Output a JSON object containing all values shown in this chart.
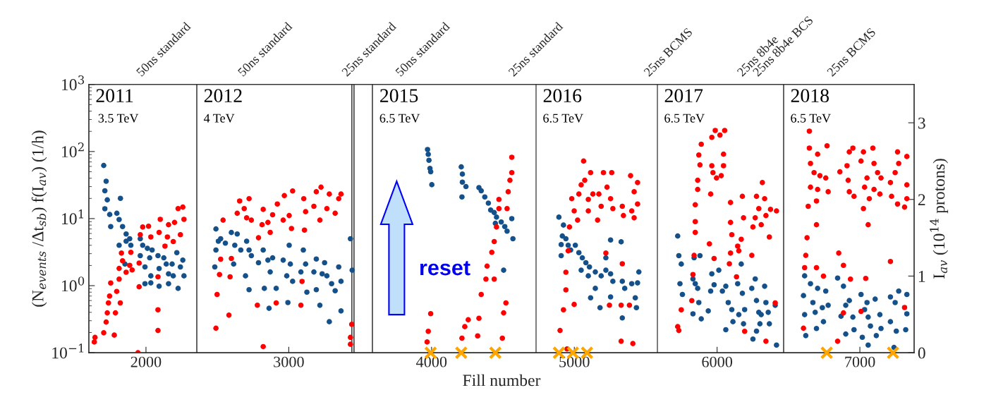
{
  "chart_data": {
    "type": "scatter",
    "xlabel": "Fill number",
    "ylabel": "(N$_{events}$ /Δt$_{sb}$) f(I$_{av}$) (1/h)",
    "y2label": "I$_{av}$ (10$^{14}$ protons)",
    "log": "y",
    "marker": "circle",
    "xlim": [
      1600,
      7380
    ],
    "xticks": [
      2000,
      3000,
      4000,
      5000,
      6000,
      7000
    ],
    "ylim": [
      0.1,
      1000
    ],
    "yticks": [
      {
        "value": 0.1,
        "label": "10$^{−1}$"
      },
      {
        "value": 1,
        "label": "10$^{0}$"
      },
      {
        "value": 10,
        "label": "10$^{1}$"
      },
      {
        "value": 100,
        "label": "10$^{2}$"
      },
      {
        "value": 1000,
        "label": "10$^{3}$"
      }
    ],
    "y2lim": [
      0,
      3.5
    ],
    "y2ticks": [
      0,
      1,
      2,
      3
    ],
    "ref_lines": [
      {
        "axis": "x",
        "value": 2356,
        "color": "#333333"
      },
      {
        "axis": "x",
        "value": 3442,
        "color": "#333333"
      },
      {
        "axis": "x",
        "value": 3457,
        "color": "#333333"
      },
      {
        "axis": "x",
        "value": 3586,
        "color": "#333333"
      },
      {
        "axis": "x",
        "value": 4732,
        "color": "#555555"
      },
      {
        "axis": "x",
        "value": 5582,
        "color": "#555555"
      },
      {
        "axis": "x",
        "value": 6466,
        "color": "#333333"
      }
    ],
    "annotations": [
      "50ns standard",
      "50ns standard",
      "25ns standard",
      "50ns standard",
      "25ns standard",
      "25ns BCMS",
      "25ns 8b4e",
      "25ns 8b4e BCS",
      "25ns BCMS",
      "2011",
      "3.5 TeV",
      "2012",
      "4 TeV",
      "2015",
      "6.5 TeV",
      "2016",
      "6.5 TeV",
      "2017",
      "6.5 TeV",
      "2018",
      "6.5 TeV",
      "reset"
    ],
    "series": [
      {
        "color": "#14508a",
        "x": [
          1704,
          1721,
          1712,
          1729,
          1712,
          1746,
          1796,
          1821,
          1753,
          1812,
          1836,
          1861,
          1886,
          1861,
          1812,
          1894,
          1853,
          1960,
          1977,
          1960,
          2010,
          1993,
          2026,
          2043,
          2034,
          1993,
          2034,
          2084,
          2092,
          2092,
          2125,
          2142,
          2158,
          2158,
          2183,
          2216,
          2225,
          2241,
          2258,
          2266,
          2191,
          2490,
          2507,
          2523,
          2490,
          2482,
          2556,
          2598,
          2639,
          2622,
          2664,
          2705,
          2722,
          2738,
          2697,
          2722,
          2614,
          2788,
          2821,
          2854,
          2887,
          2870,
          2912,
          2829,
          2862,
          2961,
          3003,
          3011,
          2986,
          2994,
          3027,
          3085,
          3102,
          3118,
          3127,
          3176,
          3193,
          3193,
          3234,
          3267,
          3251,
          3218,
          3284,
          3300,
          3325,
          3350,
          3366,
          3366,
          3432,
          3444,
          3972,
          3977,
          3982,
          3989,
          3994,
          4002,
          4208,
          4216,
          4216,
          4241,
          4213,
          4332,
          4348,
          4373,
          4398,
          4414,
          4439,
          4455,
          4447,
          4488,
          4513,
          4529,
          4570,
          4562,
          4505,
          4892,
          4924,
          4916,
          4908,
          4941,
          4957,
          4908,
          4974,
          5007,
          5032,
          5056,
          5081,
          5048,
          5106,
          5098,
          5147,
          5188,
          5221,
          5254,
          5254,
          5221,
          5270,
          5328,
          5336,
          5353,
          5147,
          5114,
          5180,
          5254,
          5336,
          5402,
          5427,
          5452,
          5435,
          5443,
          5724,
          5732,
          5749,
          5740,
          5757,
          5831,
          5847,
          5864,
          5839,
          5880,
          5872,
          5831,
          5889,
          5938,
          5955,
          5963,
          5979,
          6012,
          6037,
          6061,
          6078,
          6103,
          6111,
          6061,
          6144,
          6169,
          6177,
          6152,
          6185,
          6193,
          6243,
          6267,
          6276,
          6292,
          6300,
          6309,
          6333,
          6342,
          6358,
          6366,
          6416,
          6407,
          6251,
          6276,
          6613,
          6605,
          6613,
          6621,
          6654,
          6671,
          6687,
          6696,
          6704,
          6737,
          6761,
          6745,
          6778,
          6844,
          6885,
          6868,
          6901,
          6926,
          6951,
          6901,
          6959,
          7008,
          7033,
          7050,
          7058,
          7074,
          7107,
          7115,
          7140,
          7148,
          7058,
          7017,
          7214,
          7247,
          7272,
          7214,
          7255,
          7321,
          7329,
          7329,
          7239
        ],
        "values": [
          62,
          36,
          26,
          19,
          14,
          11.5,
          12,
          20,
          7.6,
          9.7,
          7.6,
          5.9,
          5.0,
          4.6,
          4.0,
          4.0,
          2.1,
          5.0,
          4.0,
          2.8,
          3.6,
          1.9,
          2.6,
          3.4,
          1.4,
          1.07,
          1.1,
          2.8,
          1.8,
          0.98,
          2.6,
          2.1,
          1.5,
          1.07,
          2.1,
          3.1,
          0.91,
          1.9,
          2.4,
          1.4,
          1.4,
          7.0,
          4.6,
          5.0,
          3.4,
          1.9,
          4.3,
          6.2,
          5.9,
          4.0,
          3.4,
          4.6,
          3.4,
          2.8,
          1.4,
          0.87,
          2.1,
          2.2,
          3.4,
          2.4,
          2.6,
          1.6,
          0.91,
          0.91,
          0.46,
          2.4,
          4.0,
          2.1,
          1.4,
          0.56,
          1.16,
          1.6,
          3.4,
          2.1,
          0.8,
          1.6,
          2.5,
          0.87,
          1.5,
          1.4,
          2.2,
          0.51,
          0.29,
          1.07,
          0.84,
          1.9,
          1.16,
          0.42,
          5.0,
          1.7,
          107,
          91,
          74,
          56,
          50,
          32,
          59,
          46,
          35,
          30,
          21,
          29,
          26,
          21,
          17,
          13.4,
          12.3,
          10.5,
          8.5,
          8.9,
          7.6,
          6.5,
          5.0,
          10,
          1.7,
          10.5,
          8.0,
          5.5,
          4.1,
          5.0,
          4.0,
          2.8,
          3.4,
          4.0,
          3.1,
          2.6,
          2.2,
          1.7,
          1.9,
          1.4,
          1.6,
          1.4,
          1.7,
          1.5,
          4.8,
          2.6,
          1.16,
          4.5,
          1.16,
          0.91,
          0.91,
          0.66,
          0.47,
          0.68,
          0.33,
          1.07,
          0.66,
          1.6,
          0.47,
          1.1,
          5.5,
          2.8,
          2.1,
          1.07,
          0.74,
          1.26,
          1.07,
          0.91,
          2.6,
          2.8,
          0.56,
          0.38,
          0.32,
          0.42,
          0.83,
          1.5,
          1.03,
          1.7,
          0.83,
          0.98,
          0.56,
          0.44,
          0.29,
          0.22,
          1.07,
          2.1,
          0.77,
          0.37,
          0.27,
          0.44,
          0.91,
          1.26,
          0.6,
          0.4,
          0.27,
          0.37,
          0.98,
          0.56,
          0.4,
          0.27,
          0.13,
          0.51,
          0.16,
          0.21,
          1.4,
          0.71,
          0.37,
          0.18,
          1.07,
          0.56,
          0.4,
          0.23,
          0.91,
          0.47,
          0.83,
          0.29,
          0.51,
          1.3,
          0.98,
          0.35,
          0.51,
          0.6,
          0.34,
          0.19,
          0.22,
          0.74,
          0.44,
          0.56,
          0.34,
          0.25,
          0.63,
          0.18,
          0.37,
          0.23,
          0.13,
          0.17,
          0.68,
          0.56,
          0.83,
          0.29,
          0.21,
          0.22,
          0.38,
          0.74,
          0.12
        ]
      },
      {
        "axis": "y2",
        "color": "#ff0000",
        "x": [
          1638,
          1643,
          1704,
          1721,
          1729,
          1737,
          1745,
          1753,
          1778,
          1786,
          1795,
          1812,
          1820,
          1812,
          1836,
          1828,
          1861,
          1886,
          1894,
          1903,
          1952,
          1952,
          1944,
          1960,
          1977,
          2018,
          2034,
          2084,
          2084,
          2084,
          2100,
          2092,
          2133,
          2150,
          2158,
          2191,
          2200,
          2225,
          2258,
          2241,
          2266,
          2490,
          2498,
          2515,
          2523,
          2540,
          2589,
          2598,
          2581,
          2639,
          2656,
          2688,
          2722,
          2738,
          2705,
          2788,
          2813,
          2821,
          2854,
          2870,
          2887,
          2920,
          2961,
          2969,
          3003,
          3027,
          3019,
          3105,
          3118,
          3110,
          3093,
          3085,
          3176,
          3193,
          3226,
          3218,
          3267,
          3284,
          3325,
          3366,
          3350,
          2821,
          2780,
          2912,
          3441,
          3432,
          3432,
          3969,
          3977,
          3994,
          4213,
          4233,
          4257,
          4323,
          4332,
          4348,
          4381,
          4389,
          4439,
          4422,
          4439,
          4455,
          4472,
          4496,
          4505,
          4521,
          4529,
          4537,
          4549,
          4562,
          4562,
          4472,
          4900,
          4924,
          4941,
          4941,
          4949,
          4957,
          4966,
          4999,
          4982,
          4999,
          5023,
          5032,
          5048,
          5065,
          5073,
          5098,
          5114,
          5098,
          5130,
          5163,
          5172,
          5188,
          5204,
          5221,
          5229,
          5246,
          5254,
          5262,
          5270,
          5328,
          5336,
          5336,
          5344,
          5328,
          5386,
          5394,
          5402,
          5419,
          5419,
          5443,
          5443,
          5410,
          5724,
          5732,
          5749,
          5823,
          5831,
          5839,
          5847,
          5847,
          5847,
          5864,
          5864,
          5880,
          5872,
          5889,
          5955,
          5963,
          5963,
          5987,
          5971,
          5996,
          6020,
          6045,
          6045,
          6053,
          6029,
          5946,
          5979,
          6094,
          6094,
          6103,
          6094,
          6086,
          6144,
          6152,
          6169,
          6136,
          6177,
          6185,
          6193,
          6243,
          6251,
          6267,
          6276,
          6292,
          6309,
          6317,
          6333,
          6342,
          6366,
          6374,
          6416,
          6407,
          6342,
          6646,
          6646,
          6704,
          6770,
          6654,
          6679,
          6720,
          6761,
          6654,
          6704,
          6778,
          6638,
          6696,
          6696,
          6630,
          6621,
          6613,
          6605,
          6696,
          6745,
          6860,
          6910,
          6926,
          6951,
          6918,
          6926,
          6959,
          6852,
          6885,
          6934,
          6885,
          6844,
          7008,
          7025,
          7091,
          7050,
          7099,
          7124,
          7148,
          7033,
          7099,
          7140,
          7066,
          7025,
          7058,
          7041,
          7008,
          7264,
          7272,
          7247,
          7214,
          7222,
          7264,
          7329,
          7329,
          7329,
          7313,
          7214,
          7313
        ],
        "values": [
          0.14,
          0.2,
          0.26,
          0.4,
          0.52,
          0.65,
          0.74,
          0.91,
          0.23,
          0.52,
          0.8,
          0.96,
          0.65,
          1.1,
          1.2,
          1.3,
          1.05,
          1.14,
          1.31,
          1.08,
          1.17,
          0.86,
          0.0,
          1.54,
          1.64,
          1.65,
          1.51,
          0.56,
          0.29,
          0.99,
          1.74,
          1.57,
          1.39,
          1.51,
          1.67,
          1.45,
          1.7,
          1.88,
          1.9,
          1.54,
          1.74,
          0.32,
          0.76,
          1.02,
          1.22,
          1.73,
          0.99,
          1.23,
          0.49,
          1.82,
          1.98,
          1.88,
          2.01,
          1.73,
          1.76,
          1.5,
          1.67,
          1.87,
          1.7,
          1.57,
          1.8,
          1.94,
          1.73,
          2.05,
          1.79,
          2.11,
          1.62,
          2.01,
          1.84,
          1.6,
          0.93,
          0.62,
          1.91,
          2.1,
          2.16,
          1.73,
          1.88,
          2.07,
          1.82,
          2.07,
          2.01,
          0.08,
          0.62,
          0.65,
          0.37,
          0.2,
          0.11,
          0.14,
          0.28,
          0.51,
          0.19,
          0.34,
          0.43,
          0.22,
          0.45,
          0.76,
          0.96,
          1.13,
          0.96,
          1.31,
          1.45,
          1.64,
          1.88,
          0.19,
          0.52,
          0.65,
          1.88,
          2.1,
          2.25,
          2.55,
          2.35,
          2.0,
          0.29,
          0.56,
          0.82,
          1.05,
          0.05,
          1.33,
          1.64,
          0.63,
          2.01,
          1.85,
          1.73,
          2.07,
          2.19,
          2.5,
          2.25,
          2.0,
          2.35,
          1.85,
          2.07,
          1.73,
          2.07,
          1.91,
          2.35,
          1.3,
          2.16,
          0.62,
          2.01,
          2.35,
          1.88,
          0.62,
          1.16,
          1.91,
          1.79,
          0.15,
          0.62,
          2.31,
          1.85,
          1.76,
          2.1,
          2.22,
          1.94,
          0.12,
          0.34,
          0.29,
          0.56,
          0.68,
          1.02,
          1.27,
          1.57,
          1.71,
          1.93,
          2.13,
          2.25,
          2.45,
          2.58,
          2.72,
          2.07,
          2.44,
          2.81,
          2.9,
          2.35,
          2.28,
          2.84,
          2.59,
          2.44,
          2.9,
          2.31,
          1.42,
          1.23,
          1.96,
          1.7,
          1.54,
          1.3,
          1.16,
          1.39,
          1.33,
          1.48,
          0.99,
          2.04,
          1.76,
          0.28,
          1.27,
          1.64,
          1.76,
          2.04,
          1.88,
          1.67,
          2.22,
          2.01,
          1.79,
          1.51,
          1.87,
          1.85,
          0.65,
          0.15,
          2.89,
          2.67,
          2.59,
          2.7,
          2.47,
          2.35,
          2.31,
          2.28,
          2.16,
          2.13,
          2.1,
          1.91,
          1.98,
          1.67,
          1.5,
          1.27,
          1.11,
          0.32,
          1.11,
          1.0,
          2.36,
          2.44,
          2.62,
          2.67,
          2.25,
          2.1,
          2.04,
          1.3,
          1.14,
          0.96,
          0.52,
          0.15,
          2.5,
          2.62,
          2.67,
          2.28,
          2.47,
          2.35,
          2.28,
          2.16,
          2.13,
          2.07,
          2.01,
          1.88,
          1.67,
          0.97,
          0.54,
          2.62,
          2.47,
          2.35,
          2.22,
          2.04,
          1.94,
          2.56,
          2.19,
          2.01,
          1.9,
          1.19,
          0.59
        ]
      },
      {
        "axis": "y2",
        "color": "#ffa500",
        "marker": "cross",
        "x": [
          3994,
          4208,
          4447,
          4892,
          4990,
          5089,
          6768,
          7232
        ],
        "values": [
          0,
          0,
          0,
          0,
          0,
          0,
          0,
          0
        ]
      }
    ]
  }
}
